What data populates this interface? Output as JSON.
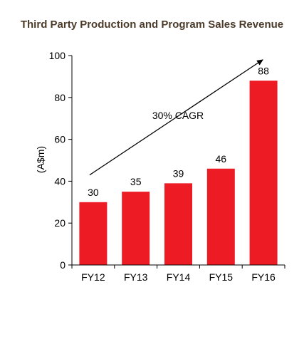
{
  "colors": {
    "bar": "#ed1c24",
    "title": "#4d3b2a",
    "axis": "#000000",
    "text": "#000000"
  },
  "chart_data": {
    "type": "bar",
    "title": "Third Party Production and Program Sales Revenue",
    "ylabel": "(A$m)",
    "xlabel": "",
    "categories": [
      "FY12",
      "FY13",
      "FY14",
      "FY15",
      "FY16"
    ],
    "values": [
      30,
      35,
      39,
      46,
      88
    ],
    "data_labels": [
      "30",
      "35",
      "39",
      "46",
      "88"
    ],
    "ylim": [
      0,
      100
    ],
    "yticks": [
      0,
      20,
      40,
      60,
      80,
      100
    ],
    "ytick_labels": [
      "0",
      "20",
      "40",
      "60",
      "80",
      "100"
    ],
    "grid": false,
    "legend": "none",
    "annotation": {
      "text": "30% CAGR",
      "arrow_from": {
        "category": "FY12",
        "value": 43
      },
      "arrow_to": {
        "category": "FY16",
        "value": 98
      }
    }
  }
}
